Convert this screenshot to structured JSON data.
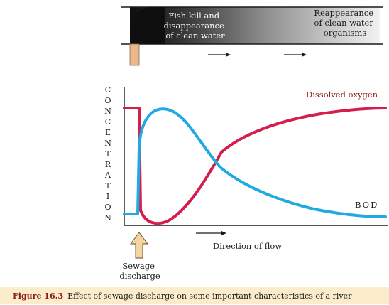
{
  "river": {
    "left_text": [
      "Fish kill and",
      "disappearance",
      "of clean water"
    ],
    "right_text": [
      "Reappearance",
      "of clean water",
      "organisms"
    ]
  },
  "axis": {
    "ylabel_letters": [
      "C",
      "O",
      "N",
      "C",
      "E",
      "N",
      "T",
      "R",
      "A",
      "T",
      "I",
      "O",
      "N"
    ],
    "xlabel": "Direction of flow"
  },
  "series": {
    "oxygen": {
      "name": "Dissolved oxygen",
      "color": "#d41e4e"
    },
    "bod": {
      "name": "BOD",
      "color": "#21a9e1"
    }
  },
  "sewage_label": [
    "Sewage",
    "discharge"
  ],
  "caption": {
    "label": "Figure 16.3",
    "text": "Effect of sewage discharge on some important characteristics of a river"
  },
  "colors": {
    "pipe": "#e9b98d",
    "arrow_fill": "#f6d59d",
    "arrow_stroke": "#5b4b3b",
    "caption_bg": "#fbeccb",
    "caption_label": "#8a1c16"
  }
}
